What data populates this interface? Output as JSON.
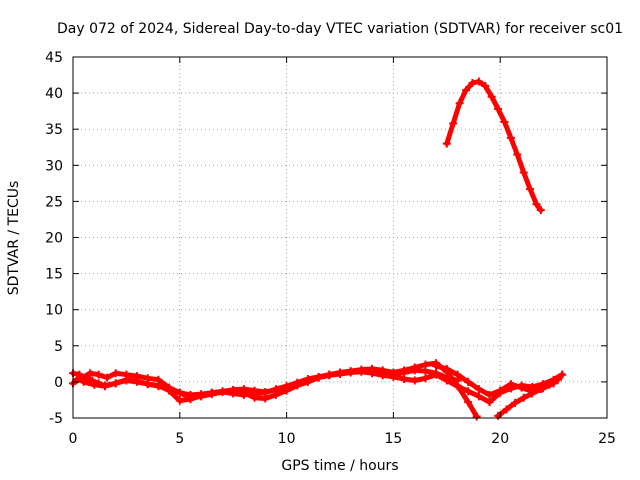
{
  "chart_data": {
    "type": "scatter",
    "title": "Day 072 of 2024, Sidereal Day-to-day VTEC variation (SDTVAR) for receiver sc01",
    "xlabel": "GPS time / hours",
    "ylabel": "SDTVAR / TECUs",
    "xlim": [
      0,
      25
    ],
    "ylim": [
      -5,
      45
    ],
    "xticks": [
      0,
      5,
      10,
      15,
      20,
      25
    ],
    "yticks": [
      -5,
      0,
      5,
      10,
      15,
      20,
      25,
      30,
      35,
      40,
      45
    ],
    "xtick_labels": [
      "0",
      "5",
      "10",
      "15",
      "20",
      "25"
    ],
    "ytick_labels": [
      "-5",
      "0",
      "5",
      "10",
      "15",
      "20",
      "25",
      "30",
      "35",
      "40",
      "45"
    ],
    "grid": true,
    "legend": "none",
    "colors": {
      "series": "#ff0000",
      "grid": "#a0a0a0",
      "axis": "#000000"
    },
    "series": [
      {
        "name": "upper-arc",
        "x": [
          17.5,
          17.8,
          18.1,
          18.4,
          18.7,
          19.0,
          19.3,
          19.6,
          19.9,
          20.2,
          20.5,
          20.8,
          21.1,
          21.4,
          21.7,
          21.9
        ],
        "y": [
          33.0,
          35.8,
          38.6,
          40.4,
          41.4,
          41.6,
          41.0,
          39.5,
          37.8,
          36.0,
          33.8,
          31.5,
          29.0,
          26.7,
          24.6,
          23.8
        ]
      },
      {
        "name": "track-a",
        "x": [
          0.0,
          0.3,
          0.6,
          0.9,
          1.2,
          1.5,
          2.0,
          2.5,
          3.0,
          3.5,
          4.0,
          4.5,
          5.0,
          5.5,
          6.0,
          6.5,
          7.0,
          7.5,
          8.0,
          8.5,
          9.0,
          9.5,
          10.0,
          10.5,
          11.0,
          11.5,
          12.0,
          12.5,
          13.0,
          13.5,
          14.0,
          14.5,
          15.0,
          15.5,
          16.0,
          16.5,
          17.0,
          17.5,
          18.0
        ],
        "y": [
          1.2,
          1.0,
          0.6,
          0.2,
          -0.2,
          -0.5,
          -0.2,
          0.3,
          0.1,
          -0.3,
          -0.6,
          -1.0,
          -1.5,
          -1.8,
          -1.7,
          -1.5,
          -1.4,
          -1.6,
          -1.8,
          -1.6,
          -1.5,
          -1.0,
          -0.6,
          -0.1,
          0.4,
          0.7,
          1.0,
          1.2,
          1.4,
          1.6,
          1.5,
          1.2,
          1.0,
          1.3,
          1.6,
          1.5,
          1.2,
          0.6,
          0.2
        ]
      },
      {
        "name": "track-b",
        "x": [
          0.0,
          0.4,
          0.8,
          1.2,
          1.6,
          2.0,
          2.5,
          3.0,
          3.5,
          4.0,
          4.5,
          5.0,
          5.5,
          6.0,
          6.5,
          7.0,
          7.5,
          8.0,
          8.5,
          9.0,
          9.5,
          10.0,
          10.5,
          11.0,
          11.5,
          12.0,
          12.5,
          13.0,
          13.5,
          14.0,
          14.5,
          15.0,
          15.5,
          16.0,
          16.5,
          17.0,
          17.5,
          18.0,
          18.5,
          18.9
        ],
        "y": [
          -0.2,
          0.5,
          1.2,
          1.0,
          0.6,
          1.2,
          1.0,
          0.8,
          0.5,
          0.3,
          -0.8,
          -1.5,
          -2.2,
          -2.0,
          -1.7,
          -1.4,
          -1.2,
          -1.5,
          -2.2,
          -2.3,
          -1.8,
          -1.2,
          -0.5,
          0.0,
          0.6,
          1.0,
          1.3,
          1.5,
          1.7,
          1.8,
          1.6,
          1.3,
          1.6,
          2.0,
          2.4,
          2.6,
          1.4,
          -0.5,
          -2.8,
          -4.8
        ]
      },
      {
        "name": "track-c",
        "x": [
          0.2,
          0.5,
          1.0,
          1.5,
          2.0,
          2.5,
          3.0,
          3.5,
          4.0,
          4.5,
          5.0,
          5.5,
          6.0,
          6.5,
          7.0,
          7.5,
          8.0,
          8.5,
          9.0,
          9.5,
          10.0,
          10.5,
          11.0,
          11.5,
          12.0,
          12.5,
          13.0,
          13.5,
          14.0,
          14.5,
          15.0,
          15.5,
          16.0,
          16.5,
          17.0,
          17.5,
          18.0,
          18.5,
          19.0,
          19.5,
          20.0,
          20.5,
          21.0,
          21.5,
          22.0,
          22.5,
          22.9
        ],
        "y": [
          0.4,
          0.0,
          -0.4,
          -0.6,
          -0.2,
          0.2,
          0.0,
          -0.3,
          -0.5,
          -1.2,
          -2.6,
          -2.4,
          -1.9,
          -1.5,
          -1.3,
          -1.1,
          -1.0,
          -1.2,
          -1.4,
          -1.1,
          -0.8,
          -0.3,
          0.2,
          0.6,
          0.9,
          1.1,
          1.3,
          1.4,
          1.2,
          0.9,
          0.7,
          0.4,
          0.2,
          0.5,
          1.0,
          0.2,
          -0.6,
          -1.3,
          -2.0,
          -2.8,
          -1.5,
          -0.9,
          -0.5,
          -0.7,
          -0.3,
          0.3,
          1.0
        ]
      },
      {
        "name": "track-d",
        "x": [
          19.9,
          20.3,
          20.7,
          21.1,
          21.5,
          21.9,
          22.3,
          22.7,
          22.9
        ],
        "y": [
          -4.7,
          -3.8,
          -2.9,
          -2.2,
          -1.6,
          -1.0,
          -0.4,
          0.3,
          1.0
        ]
      },
      {
        "name": "track-e",
        "x": [
          17.0,
          17.5,
          18.0,
          18.5,
          19.0,
          19.5,
          20.0,
          20.5,
          21.0,
          21.5,
          22.0,
          22.5
        ],
        "y": [
          2.2,
          1.8,
          1.0,
          0.0,
          -1.0,
          -1.8,
          -1.2,
          -0.3,
          -0.8,
          -1.3,
          -0.9,
          -0.2
        ]
      }
    ]
  }
}
